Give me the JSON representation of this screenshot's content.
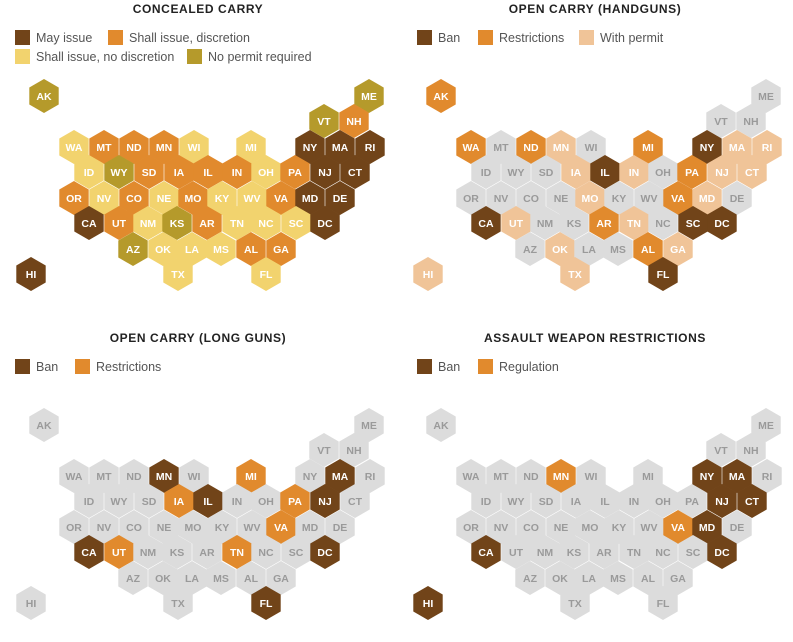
{
  "colors": {
    "ban": "#714419",
    "may": "#714419",
    "discretion": "#E18A2D",
    "restrict": "#E18A2D",
    "nodisc": "#F2D36E",
    "nopermit": "#B59A2B",
    "permit": "#F0C498",
    "none": "#DCDCDC",
    "text_dark": "#FFFFFF",
    "text_light": "#FFFFFF",
    "text_none": "#9A9A9A"
  },
  "panels": [
    {
      "title": "CONCEALED CARRY",
      "legend": [
        {
          "key": "may",
          "label": "May issue"
        },
        {
          "key": "discretion",
          "label": "Shall issue, discretion"
        },
        {
          "key": "nodisc",
          "label": "Shall issue, no discretion"
        },
        {
          "key": "nopermit",
          "label": "No permit required"
        }
      ],
      "states": {
        "AK": "nopermit",
        "ME": "nopermit",
        "VT": "nopermit",
        "NH": "discretion",
        "WA": "nodisc",
        "MT": "discretion",
        "ND": "discretion",
        "MN": "discretion",
        "WI": "nodisc",
        "MI": "nodisc",
        "NY": "may",
        "MA": "may",
        "RI": "may",
        "ID": "nodisc",
        "WY": "nopermit",
        "SD": "discretion",
        "IA": "discretion",
        "IL": "discretion",
        "IN": "discretion",
        "OH": "nodisc",
        "PA": "discretion",
        "NJ": "may",
        "CT": "may",
        "OR": "discretion",
        "NV": "nodisc",
        "CO": "discretion",
        "NE": "nodisc",
        "MO": "discretion",
        "KY": "nodisc",
        "WV": "nodisc",
        "VA": "discretion",
        "MD": "may",
        "DE": "may",
        "CA": "may",
        "UT": "discretion",
        "NM": "nodisc",
        "KS": "nopermit",
        "AR": "discretion",
        "TN": "nodisc",
        "NC": "nodisc",
        "SC": "nodisc",
        "DC": "may",
        "AZ": "nopermit",
        "OK": "nodisc",
        "LA": "nodisc",
        "MS": "nodisc",
        "AL": "discretion",
        "GA": "discretion",
        "HI": "may",
        "TX": "nodisc",
        "FL": "nodisc"
      }
    },
    {
      "title": "OPEN CARRY (HANDGUNS)",
      "legend": [
        {
          "key": "ban",
          "label": "Ban"
        },
        {
          "key": "restrict",
          "label": "Restrictions"
        },
        {
          "key": "permit",
          "label": "With permit"
        }
      ],
      "states": {
        "AK": "restrict",
        "ME": "none",
        "VT": "none",
        "NH": "none",
        "WA": "restrict",
        "MT": "none",
        "ND": "restrict",
        "MN": "permit",
        "WI": "none",
        "MI": "restrict",
        "NY": "ban",
        "MA": "permit",
        "RI": "permit",
        "ID": "none",
        "WY": "none",
        "SD": "none",
        "IA": "permit",
        "IL": "ban",
        "IN": "permit",
        "OH": "none",
        "PA": "restrict",
        "NJ": "permit",
        "CT": "permit",
        "OR": "none",
        "NV": "none",
        "CO": "none",
        "NE": "none",
        "MO": "permit",
        "KY": "none",
        "WV": "none",
        "VA": "restrict",
        "MD": "permit",
        "DE": "none",
        "CA": "ban",
        "UT": "permit",
        "NM": "none",
        "KS": "none",
        "AR": "restrict",
        "TN": "permit",
        "NC": "none",
        "SC": "ban",
        "DC": "ban",
        "AZ": "none",
        "OK": "permit",
        "LA": "none",
        "MS": "none",
        "AL": "restrict",
        "GA": "permit",
        "HI": "permit",
        "TX": "permit",
        "FL": "ban"
      }
    },
    {
      "title": "OPEN CARRY (LONG GUNS)",
      "legend": [
        {
          "key": "ban",
          "label": "Ban"
        },
        {
          "key": "restrict",
          "label": "Restrictions"
        }
      ],
      "states": {
        "AK": "none",
        "ME": "none",
        "VT": "none",
        "NH": "none",
        "WA": "none",
        "MT": "none",
        "ND": "none",
        "MN": "ban",
        "WI": "none",
        "MI": "restrict",
        "NY": "none",
        "MA": "ban",
        "RI": "none",
        "ID": "none",
        "WY": "none",
        "SD": "none",
        "IA": "restrict",
        "IL": "ban",
        "IN": "none",
        "OH": "none",
        "PA": "restrict",
        "NJ": "ban",
        "CT": "none",
        "OR": "none",
        "NV": "none",
        "CO": "none",
        "NE": "none",
        "MO": "none",
        "KY": "none",
        "WV": "none",
        "VA": "restrict",
        "MD": "none",
        "DE": "none",
        "CA": "ban",
        "UT": "restrict",
        "NM": "none",
        "KS": "none",
        "AR": "none",
        "TN": "restrict",
        "NC": "none",
        "SC": "none",
        "DC": "ban",
        "AZ": "none",
        "OK": "none",
        "LA": "none",
        "MS": "none",
        "AL": "none",
        "GA": "none",
        "HI": "none",
        "TX": "none",
        "FL": "ban"
      }
    },
    {
      "title": "ASSAULT WEAPON RESTRICTIONS",
      "legend": [
        {
          "key": "ban",
          "label": "Ban"
        },
        {
          "key": "restrict",
          "label": "Regulation"
        }
      ],
      "states": {
        "AK": "none",
        "ME": "none",
        "VT": "none",
        "NH": "none",
        "WA": "none",
        "MT": "none",
        "ND": "none",
        "MN": "restrict",
        "WI": "none",
        "MI": "none",
        "NY": "ban",
        "MA": "ban",
        "RI": "none",
        "ID": "none",
        "WY": "none",
        "SD": "none",
        "IA": "none",
        "IL": "none",
        "IN": "none",
        "OH": "none",
        "PA": "none",
        "NJ": "ban",
        "CT": "ban",
        "OR": "none",
        "NV": "none",
        "CO": "none",
        "NE": "none",
        "MO": "none",
        "KY": "none",
        "WV": "none",
        "VA": "restrict",
        "MD": "ban",
        "DE": "none",
        "CA": "ban",
        "UT": "none",
        "NM": "none",
        "KS": "none",
        "AR": "none",
        "TN": "none",
        "NC": "none",
        "SC": "none",
        "DC": "ban",
        "AZ": "none",
        "OK": "none",
        "LA": "none",
        "MS": "none",
        "AL": "none",
        "GA": "none",
        "HI": "ban",
        "TX": "none",
        "FL": "none"
      }
    }
  ]
}
